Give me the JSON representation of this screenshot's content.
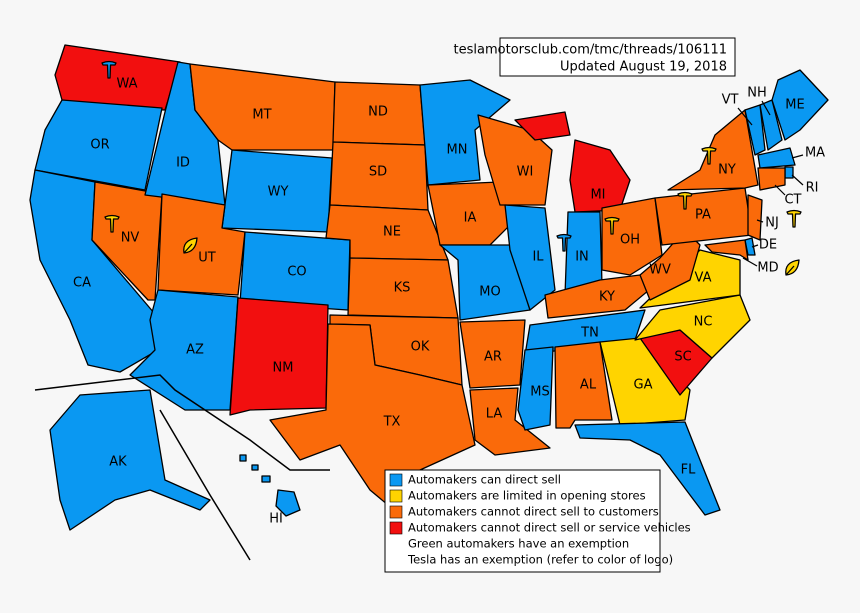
{
  "header": {
    "source": "teslamotorsclub.com/tmc/threads/106111",
    "updated": "Updated August 19, 2018"
  },
  "legend": [
    {
      "label": "Automakers can direct sell",
      "color": "#0a98f2"
    },
    {
      "label": "Automakers are limited in opening stores",
      "color": "#ffd400"
    },
    {
      "label": "Automakers cannot direct sell to customers",
      "color": "#fa6a0a"
    },
    {
      "label": "Automakers cannot direct sell or service vehicles",
      "color": "#f20f0f"
    },
    {
      "label": "Green automakers have an exemption"
    },
    {
      "label": "Tesla has an exemption (refer to color of logo)"
    }
  ],
  "states": [
    {
      "label": "WA",
      "color": "#f20f0f"
    },
    {
      "label": "OR",
      "color": "#0a98f2"
    },
    {
      "label": "CA",
      "color": "#0a98f2"
    },
    {
      "label": "NV",
      "color": "#fa6a0a"
    },
    {
      "label": "ID",
      "color": "#0a98f2"
    },
    {
      "label": "MT",
      "color": "#fa6a0a"
    },
    {
      "label": "WY",
      "color": "#0a98f2"
    },
    {
      "label": "UT",
      "color": "#fa6a0a"
    },
    {
      "label": "CO",
      "color": "#0a98f2"
    },
    {
      "label": "AZ",
      "color": "#0a98f2"
    },
    {
      "label": "NM",
      "color": "#f20f0f"
    },
    {
      "label": "ND",
      "color": "#fa6a0a"
    },
    {
      "label": "SD",
      "color": "#fa6a0a"
    },
    {
      "label": "NE",
      "color": "#fa6a0a"
    },
    {
      "label": "KS",
      "color": "#fa6a0a"
    },
    {
      "label": "OK",
      "color": "#fa6a0a"
    },
    {
      "label": "TX",
      "color": "#fa6a0a"
    },
    {
      "label": "MN",
      "color": "#0a98f2"
    },
    {
      "label": "IA",
      "color": "#fa6a0a"
    },
    {
      "label": "MO",
      "color": "#0a98f2"
    },
    {
      "label": "AR",
      "color": "#fa6a0a"
    },
    {
      "label": "LA",
      "color": "#fa6a0a"
    },
    {
      "label": "WI",
      "color": "#fa6a0a"
    },
    {
      "label": "IL",
      "color": "#0a98f2"
    },
    {
      "label": "MI",
      "color": "#f20f0f"
    },
    {
      "label": "IN",
      "color": "#0a98f2"
    },
    {
      "label": "OH",
      "color": "#fa6a0a"
    },
    {
      "label": "KY",
      "color": "#fa6a0a"
    },
    {
      "label": "TN",
      "color": "#0a98f2"
    },
    {
      "label": "MS",
      "color": "#0a98f2"
    },
    {
      "label": "AL",
      "color": "#fa6a0a"
    },
    {
      "label": "GA",
      "color": "#ffd400"
    },
    {
      "label": "FL",
      "color": "#0a98f2"
    },
    {
      "label": "SC",
      "color": "#f20f0f"
    },
    {
      "label": "NC",
      "color": "#ffd400"
    },
    {
      "label": "VA",
      "color": "#ffd400"
    },
    {
      "label": "WV",
      "color": "#fa6a0a"
    },
    {
      "label": "PA",
      "color": "#fa6a0a"
    },
    {
      "label": "NY",
      "color": "#fa6a0a"
    },
    {
      "label": "VT",
      "color": "#0a98f2"
    },
    {
      "label": "NH",
      "color": "#0a98f2"
    },
    {
      "label": "ME",
      "color": "#0a98f2"
    },
    {
      "label": "MA",
      "color": "#0a98f2"
    },
    {
      "label": "RI",
      "color": "#0a98f2"
    },
    {
      "label": "CT",
      "color": "#fa6a0a"
    },
    {
      "label": "NJ",
      "color": "#fa6a0a"
    },
    {
      "label": "DE",
      "color": "#0a98f2"
    },
    {
      "label": "MD",
      "color": "#fa6a0a"
    },
    {
      "label": "AK",
      "color": "#0a98f2"
    },
    {
      "label": "HI",
      "color": "#0a98f2"
    }
  ]
}
